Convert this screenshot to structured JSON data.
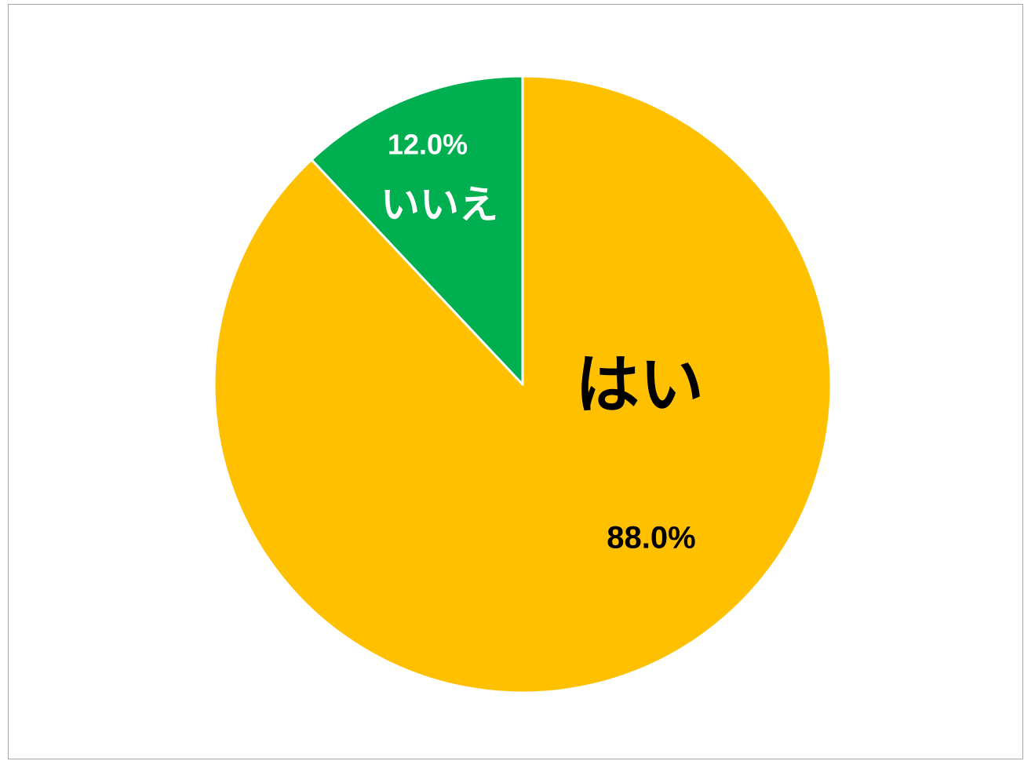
{
  "chart_data": {
    "type": "pie",
    "categories": [
      "はい",
      "いいえ"
    ],
    "values": [
      88.0,
      12.0
    ],
    "value_labels": [
      "88.0%",
      "12.0%"
    ],
    "colors": [
      "#FFC000",
      "#00B050"
    ]
  }
}
